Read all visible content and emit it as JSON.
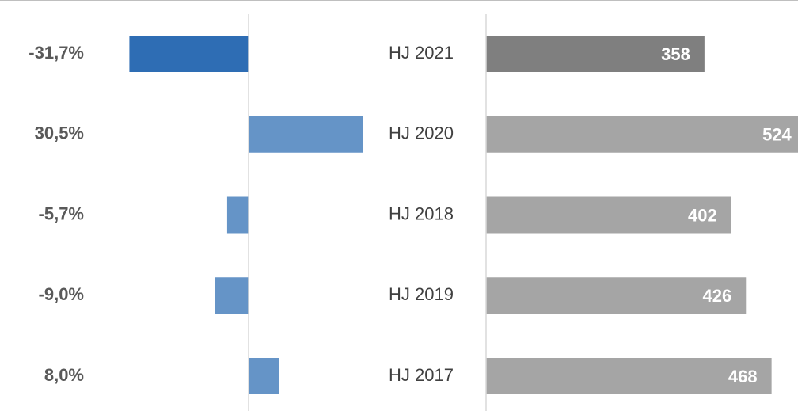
{
  "chart_data": [
    {
      "type": "bar",
      "orientation": "horizontal",
      "values": [
        -31.7,
        30.5,
        -5.7,
        -9.0,
        8.0
      ],
      "value_labels": [
        "-31,7%",
        "30,5%",
        "-5,7%",
        "-9,0%",
        "8,0%"
      ],
      "colors": [
        "#2e6db4",
        "#6594c7",
        "#6594c7",
        "#6594c7",
        "#6594c7"
      ],
      "xlim": [
        -40,
        40
      ]
    },
    {
      "type": "bar",
      "orientation": "horizontal",
      "categories": [
        "HJ 2021",
        "HJ 2020",
        "HJ 2018",
        "HJ 2019",
        "HJ 2017"
      ],
      "values": [
        358,
        524,
        402,
        426,
        468
      ],
      "colors": [
        "#7f7f7f",
        "#a5a5a5",
        "#a5a5a5",
        "#a5a5a5",
        "#a5a5a5"
      ],
      "xlim": [
        0,
        510
      ]
    }
  ]
}
